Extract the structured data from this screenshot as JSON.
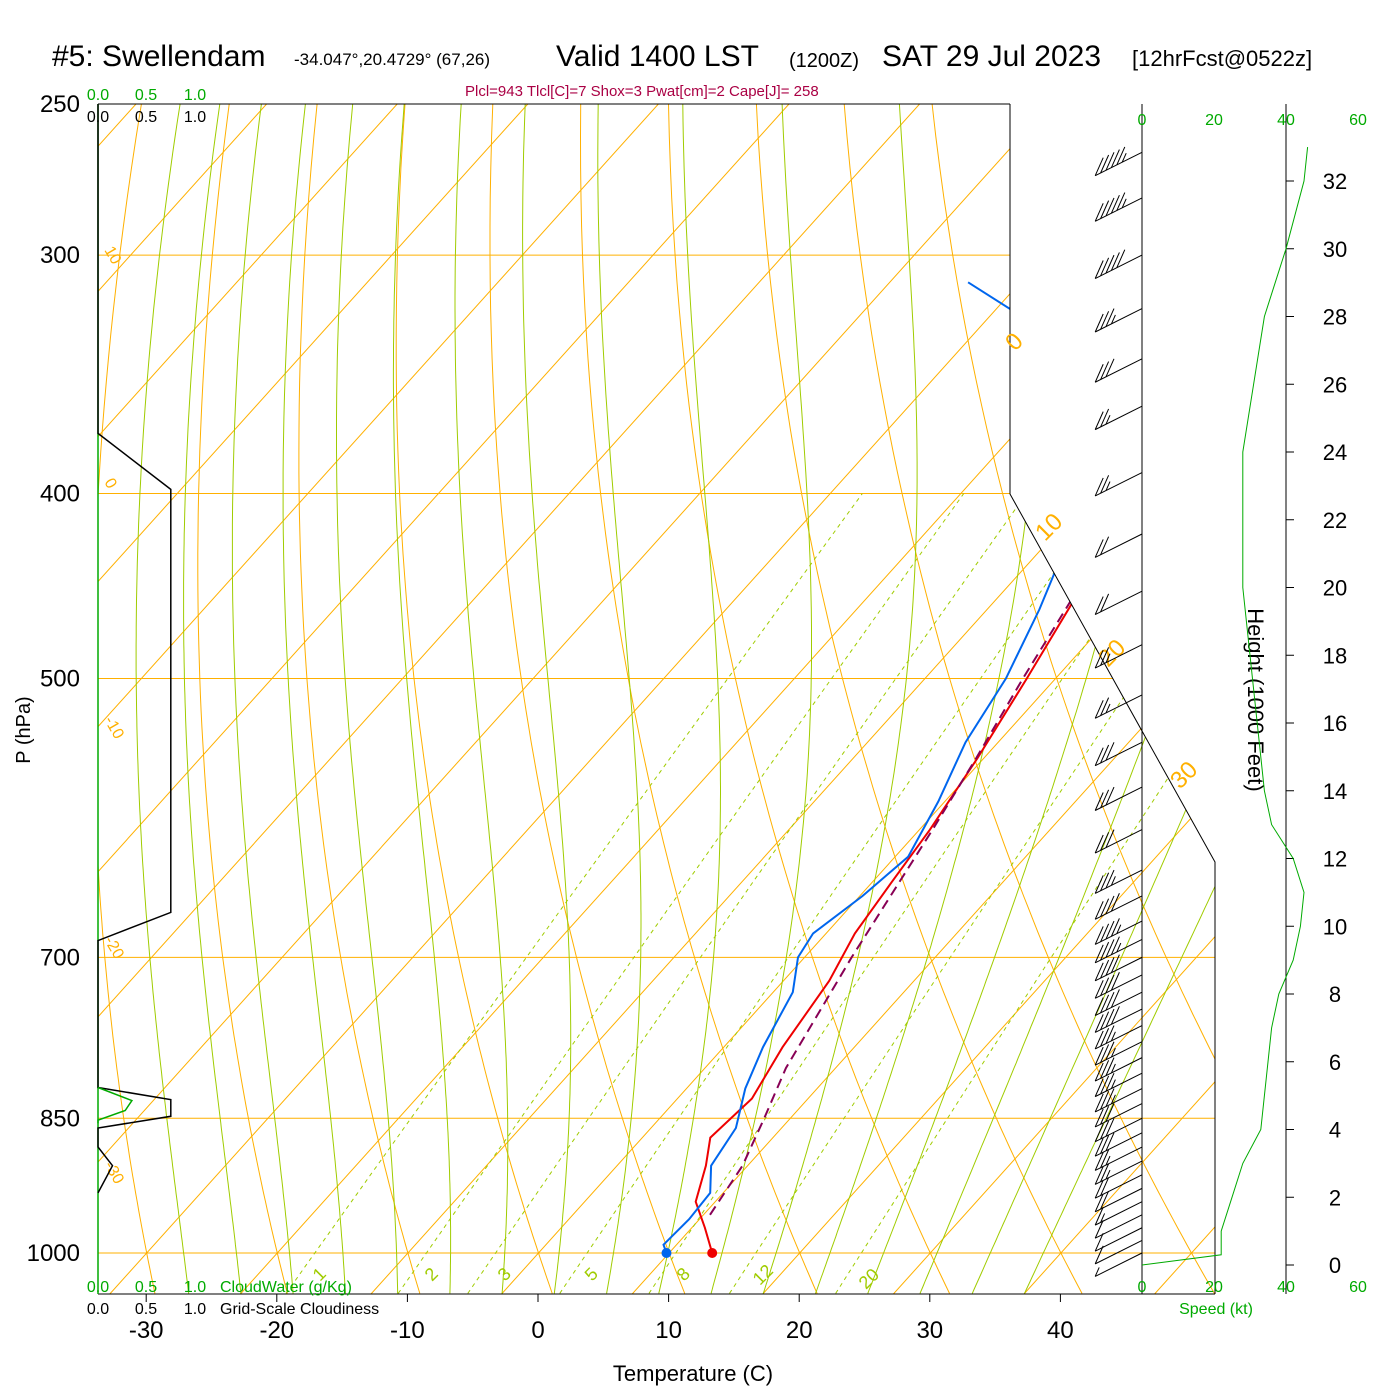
{
  "header": {
    "station": "#5: Swellendam",
    "coords": "-34.047°,20.4729° (67,26)",
    "valid": "Valid 1400 LST",
    "utc": "(1200Z)",
    "date": "SAT 29 Jul 2023",
    "fcst": "[12hrFcst@0522z]"
  },
  "params_line": "Plcl=943 Tlcl[C]=7 Shox=3 Pwat[cm]=2 Cape[J]= 258",
  "colors": {
    "isotherm": "#ffb000",
    "dry_adiabat": "#ffb000",
    "moist_adiabat": "#a0cc00",
    "mixing_ratio": "#a0cc00",
    "temperature": "#ee0000",
    "dewpoint": "#0066ee",
    "parcel": "#880055",
    "cloudwater": "#00aa00",
    "wind_speed": "#00aa00",
    "params_text": "#aa0044"
  },
  "chart_data": {
    "type": "line",
    "title": "Skew-T log-P sounding",
    "xlabel": "Temperature (C)",
    "ylabel": "P (hPa)",
    "y2label": "Height (1000 Feet)",
    "xlim": [
      -34,
      36
    ],
    "ylim": [
      1030,
      250
    ],
    "x_ticks": [
      -30,
      -20,
      -10,
      0,
      10,
      20,
      30,
      40
    ],
    "p_ticks": [
      250,
      300,
      400,
      500,
      700,
      850,
      1000
    ],
    "height_ticks": [
      0,
      2,
      4,
      6,
      8,
      10,
      12,
      14,
      16,
      18,
      20,
      22,
      24,
      26,
      28,
      30,
      32
    ],
    "isotherm_labels": [
      10,
      0,
      -10,
      -20,
      -30,
      0,
      10,
      20,
      30
    ],
    "mixing_ratio_labels": [
      "1",
      "2",
      "3",
      "5",
      "8",
      "12",
      "20"
    ],
    "cloud_scale_top": [
      "0.0",
      "0.5",
      "1.0"
    ],
    "cloud_scale_top_labels": [
      "0.0",
      "0.5",
      "1.0"
    ],
    "cloud_legend_cloudwater": "CloudWater (g/Kg)",
    "cloud_legend_cloudiness": "Grid-Scale Cloudiness",
    "speed_ticks": [
      "0",
      "20",
      "40",
      "60"
    ],
    "speed_label": "Speed (kt)",
    "series": [
      {
        "name": "Temperature",
        "points": [
          [
            1000,
            13.3
          ],
          [
            970,
            11.0
          ],
          [
            940,
            8.5
          ],
          [
            900,
            6.8
          ],
          [
            870,
            5.2
          ],
          [
            830,
            5.7
          ],
          [
            780,
            4.5
          ],
          [
            720,
            3.5
          ],
          [
            680,
            2.2
          ],
          [
            640,
            1.5
          ],
          [
            600,
            0.8
          ],
          [
            550,
            -0.5
          ],
          [
            500,
            -2.2
          ],
          [
            450,
            -4.2
          ],
          [
            400,
            -6.1
          ],
          [
            380,
            -5.6
          ],
          [
            350,
            -4.0
          ],
          [
            330,
            -2.5
          ],
          [
            300,
            -0.8
          ],
          [
            265,
            0.0
          ]
        ]
      },
      {
        "name": "Dewpoint",
        "points": [
          [
            1000,
            9.8
          ],
          [
            990,
            9.0
          ],
          [
            960,
            9.2
          ],
          [
            930,
            9.0
          ],
          [
            900,
            7.2
          ],
          [
            860,
            6.5
          ],
          [
            820,
            4.5
          ],
          [
            780,
            3.0
          ],
          [
            730,
            1.5
          ],
          [
            700,
            -0.5
          ],
          [
            680,
            -1.0
          ],
          [
            650,
            0.2
          ],
          [
            620,
            1.0
          ],
          [
            580,
            -0.5
          ],
          [
            540,
            -2.5
          ],
          [
            500,
            -3.8
          ],
          [
            460,
            -6.0
          ],
          [
            420,
            -8.8
          ],
          [
            380,
            -13.3
          ],
          [
            350,
            -18.5
          ],
          [
            330,
            -24.2
          ],
          [
            310,
            -34.0
          ]
        ]
      },
      {
        "name": "Parcel",
        "points": [
          [
            955,
            10.5
          ],
          [
            900,
            9.6
          ],
          [
            850,
            8.0
          ],
          [
            800,
            6.2
          ],
          [
            700,
            3.6
          ],
          [
            600,
            1.0
          ],
          [
            550,
            -0.6
          ],
          [
            500,
            -2.5
          ],
          [
            450,
            -4.4
          ],
          [
            400,
            -6.5
          ]
        ]
      }
    ],
    "wind_speed_profile": [
      [
        0,
        0
      ],
      [
        0.3,
        22
      ],
      [
        1,
        22
      ],
      [
        2,
        25
      ],
      [
        3,
        28
      ],
      [
        4,
        33
      ],
      [
        6,
        35
      ],
      [
        7,
        36
      ],
      [
        8,
        38
      ],
      [
        9,
        42
      ],
      [
        10,
        44
      ],
      [
        11,
        45
      ],
      [
        12,
        42
      ],
      [
        13,
        36
      ],
      [
        14,
        34
      ],
      [
        16,
        32
      ],
      [
        18,
        30
      ],
      [
        20,
        28
      ],
      [
        22,
        28
      ],
      [
        24,
        28
      ],
      [
        26,
        31
      ],
      [
        28,
        34
      ],
      [
        30,
        40
      ],
      [
        32,
        45
      ],
      [
        33,
        46
      ]
    ],
    "wind_barbs": [
      [
        1000,
        5
      ],
      [
        985,
        10
      ],
      [
        970,
        10
      ],
      [
        955,
        10
      ],
      [
        940,
        15
      ],
      [
        925,
        20
      ],
      [
        910,
        20
      ],
      [
        895,
        25
      ],
      [
        880,
        25
      ],
      [
        865,
        30
      ],
      [
        850,
        30
      ],
      [
        835,
        30
      ],
      [
        820,
        35
      ],
      [
        805,
        35
      ],
      [
        790,
        35
      ],
      [
        775,
        35
      ],
      [
        760,
        35
      ],
      [
        745,
        40
      ],
      [
        730,
        40
      ],
      [
        715,
        40
      ],
      [
        700,
        40
      ],
      [
        685,
        45
      ],
      [
        670,
        45
      ],
      [
        650,
        40
      ],
      [
        630,
        35
      ],
      [
        600,
        30
      ],
      [
        570,
        30
      ],
      [
        540,
        30
      ],
      [
        510,
        25
      ],
      [
        480,
        25
      ],
      [
        450,
        20
      ],
      [
        420,
        20
      ],
      [
        390,
        25
      ],
      [
        360,
        25
      ],
      [
        340,
        30
      ],
      [
        320,
        35
      ],
      [
        300,
        50
      ],
      [
        280,
        55
      ],
      [
        265,
        55
      ]
    ],
    "cloud_outline": [
      [
        250,
        0
      ],
      [
        372,
        0
      ],
      [
        398,
        0.75
      ],
      [
        500,
        0.75
      ],
      [
        650,
        0.75
      ],
      [
        663,
        0.75
      ],
      [
        686,
        0
      ],
      [
        819,
        0
      ],
      [
        831,
        0.75
      ],
      [
        848,
        0.75
      ],
      [
        860,
        0
      ],
      [
        880,
        0
      ],
      [
        900,
        0.15
      ],
      [
        930,
        0
      ]
    ],
    "cloudwater_profile": [
      [
        819,
        0
      ],
      [
        832,
        0.35
      ],
      [
        842,
        0.28
      ],
      [
        852,
        0
      ],
      [
        855,
        0
      ]
    ]
  }
}
